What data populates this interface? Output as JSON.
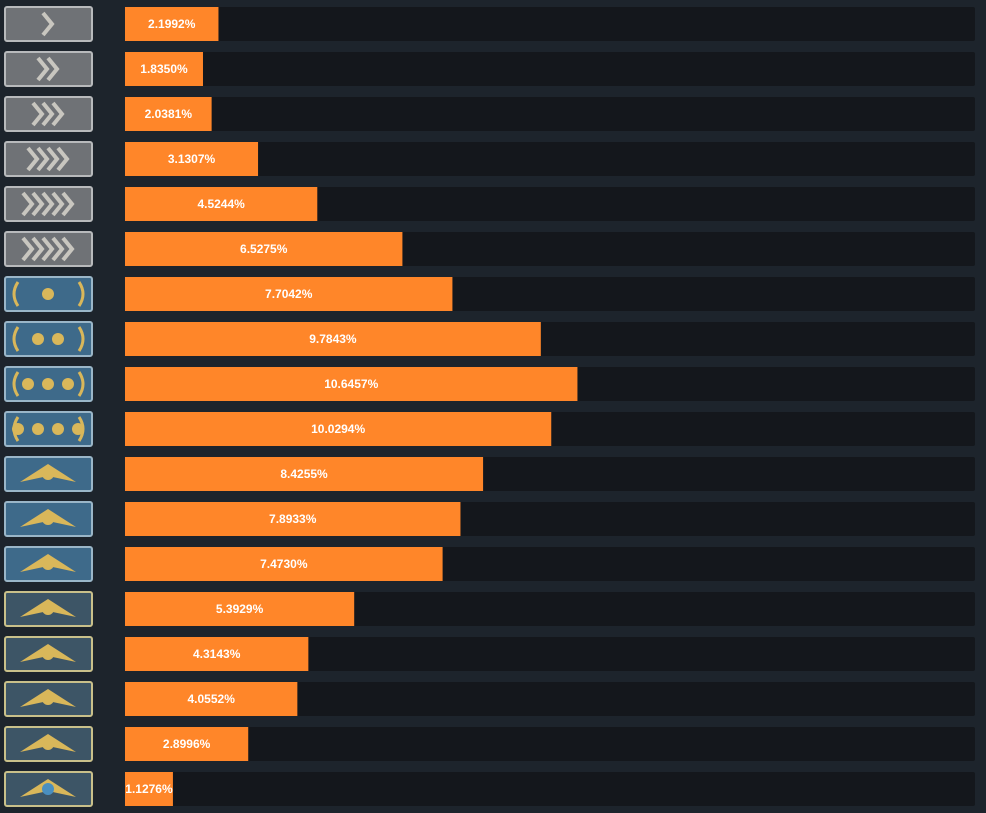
{
  "chart_data": {
    "type": "bar",
    "orientation": "horizontal",
    "categories": [
      null,
      null,
      null,
      null,
      null,
      null,
      null,
      null,
      null,
      null,
      null,
      null,
      null,
      null,
      null,
      null,
      null,
      null
    ],
    "values": [
      2.1992,
      1.835,
      2.0381,
      3.1307,
      4.5244,
      6.5275,
      7.7042,
      9.7843,
      10.6457,
      10.0294,
      8.4255,
      7.8933,
      7.473,
      5.3929,
      4.3143,
      4.0552,
      2.8996,
      1.1276
    ],
    "value_labels": [
      "2.1992%",
      "1.8350%",
      "2.0381%",
      "3.1307%",
      "4.5244%",
      "6.5275%",
      "7.7042%",
      "9.7843%",
      "10.6457%",
      "10.0294%",
      "8.4255%",
      "7.8933%",
      "7.4730%",
      "5.3929%",
      "4.3143%",
      "4.0552%",
      "2.8996%",
      "1.1276%"
    ],
    "color": "#ff8629",
    "xlim": [
      0,
      20
    ]
  }
}
